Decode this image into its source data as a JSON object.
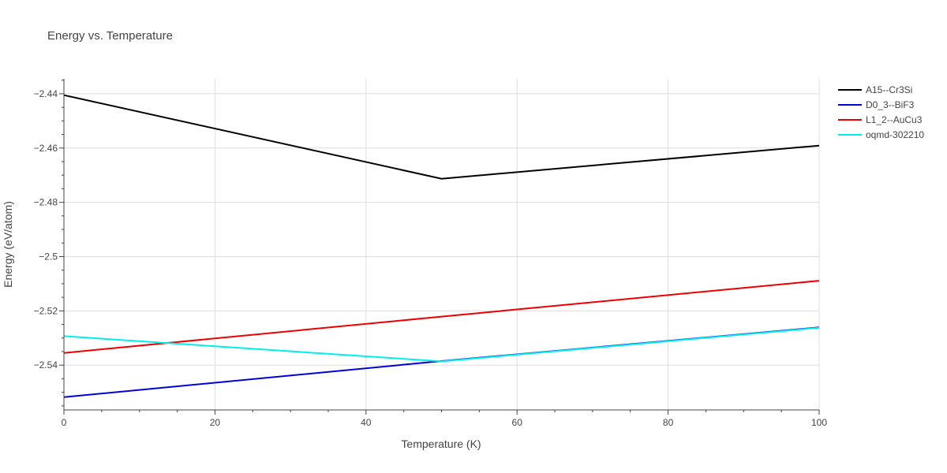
{
  "chart_data": {
    "type": "line",
    "title": "Energy vs. Temperature",
    "xlabel": "Temperature (K)",
    "ylabel": "Energy (eV/atom)",
    "xlim": [
      0,
      100
    ],
    "ylim": [
      -2.5565,
      -2.4345
    ],
    "x_ticks": [
      0,
      20,
      40,
      60,
      80,
      100
    ],
    "x_tick_labels": [
      "0",
      "20",
      "40",
      "60",
      "80",
      "100"
    ],
    "y_ticks": [
      -2.54,
      -2.52,
      -2.5,
      -2.48,
      -2.46,
      -2.44
    ],
    "y_tick_labels": [
      "−2.54",
      "−2.52",
      "−2.5",
      "−2.48",
      "−2.46",
      "−2.44"
    ],
    "grid": true,
    "legend_position": "top-right",
    "series": [
      {
        "name": "A15--Cr3Si",
        "color": "#000000",
        "x": [
          0,
          50,
          100
        ],
        "y": [
          -2.4405,
          -2.4713,
          -2.4591
        ]
      },
      {
        "name": "D0_3--BiF3",
        "color": "#0000dd",
        "x": [
          0,
          50,
          100
        ],
        "y": [
          -2.5518,
          -2.5385,
          -2.5261
        ]
      },
      {
        "name": "L1_2--AuCu3",
        "color": "#ee0000",
        "x": [
          0,
          50,
          100
        ],
        "y": [
          -2.5355,
          -2.5221,
          -2.5089
        ]
      },
      {
        "name": "oqmd-302210",
        "color": "#00eeee",
        "x": [
          0,
          50,
          100
        ],
        "y": [
          -2.5293,
          -2.5386,
          -2.5262
        ]
      }
    ]
  }
}
